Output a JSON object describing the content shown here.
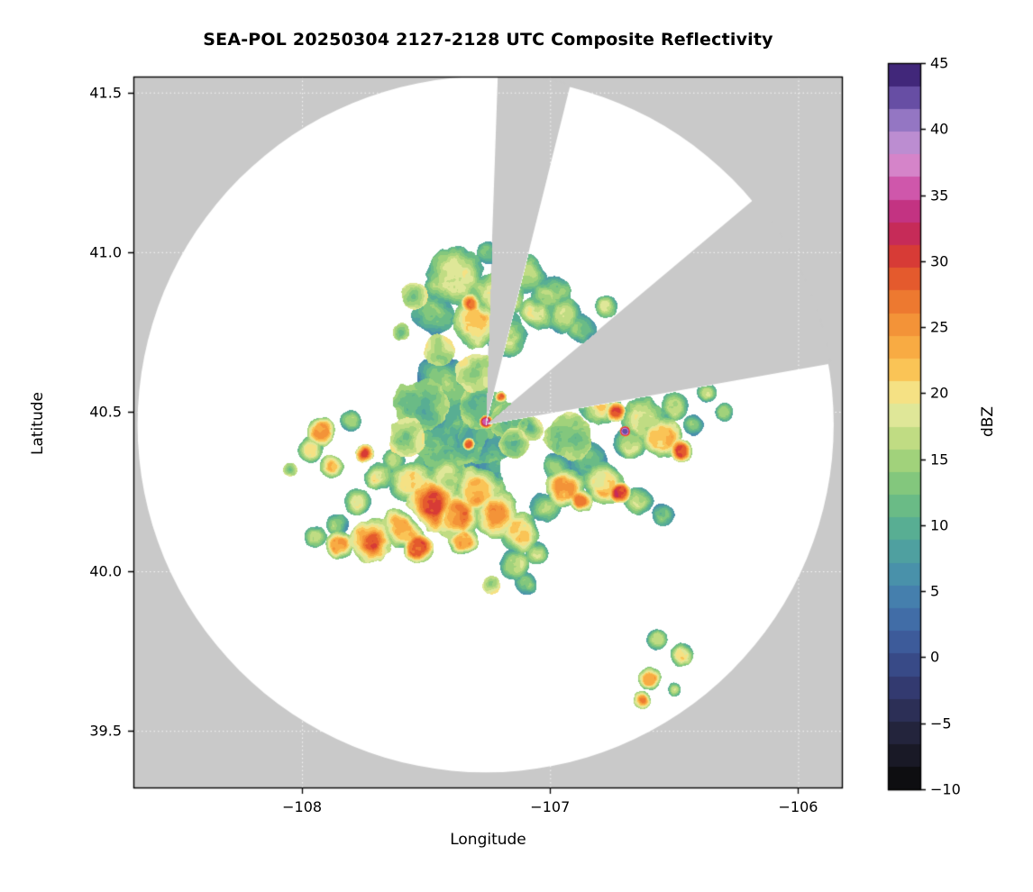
{
  "chart_data": {
    "type": "heatmap",
    "title": "SEA-POL 20250304 2127-2128 UTC Composite Reflectivity",
    "xlabel": "Longitude",
    "ylabel": "Latitude",
    "xlim": [
      -108.68,
      -105.82
    ],
    "ylim": [
      39.32,
      41.55
    ],
    "grid": "dotted",
    "legend_position": "right-colorbar",
    "background_outside_range": "#c9c9c9",
    "background_inside_range": "#ffffff",
    "xticks": [
      {
        "value": -108,
        "label": "−108"
      },
      {
        "value": -107,
        "label": "−107"
      },
      {
        "value": -106,
        "label": "−106"
      }
    ],
    "yticks": [
      {
        "value": 41.5,
        "label": "41.5"
      },
      {
        "value": 41.0,
        "label": "41.0"
      },
      {
        "value": 40.5,
        "label": "40.5"
      },
      {
        "value": 40.0,
        "label": "40.0"
      },
      {
        "value": 39.5,
        "label": "39.5"
      }
    ],
    "radar": {
      "center_lon": -107.26,
      "center_lat": 40.46,
      "range_deg_lat": 1.09,
      "blocked_sectors_deg_az": [
        [
          2,
          14
        ],
        [
          50,
          80
        ]
      ]
    },
    "colorbar": {
      "label": "dBZ",
      "min": -10,
      "max": 45,
      "ticks": [
        {
          "value": 45,
          "label": "45"
        },
        {
          "value": 40,
          "label": "40"
        },
        {
          "value": 35,
          "label": "35"
        },
        {
          "value": 30,
          "label": "30"
        },
        {
          "value": 25,
          "label": "25"
        },
        {
          "value": 20,
          "label": "20"
        },
        {
          "value": 15,
          "label": "15"
        },
        {
          "value": 10,
          "label": "10"
        },
        {
          "value": 5,
          "label": "5"
        },
        {
          "value": 0,
          "label": "0"
        },
        {
          "value": -5,
          "label": "−5"
        },
        {
          "value": -10,
          "label": "−10"
        }
      ],
      "colormap": [
        [
          -10,
          "#080808"
        ],
        [
          -8,
          "#16161e"
        ],
        [
          -6,
          "#222238"
        ],
        [
          -4,
          "#2c2f56"
        ],
        [
          -2,
          "#343c74"
        ],
        [
          0,
          "#3a4f8e"
        ],
        [
          2,
          "#3f64a2"
        ],
        [
          4,
          "#4379ae"
        ],
        [
          6,
          "#488eac"
        ],
        [
          8,
          "#4fa0a0"
        ],
        [
          10,
          "#59b091"
        ],
        [
          12,
          "#70bf82"
        ],
        [
          14,
          "#90cc7a"
        ],
        [
          16,
          "#b4d87c"
        ],
        [
          18,
          "#d8e492"
        ],
        [
          19,
          "#eceba3"
        ],
        [
          20,
          "#f5e287"
        ],
        [
          21,
          "#f8d465"
        ],
        [
          22,
          "#fac052"
        ],
        [
          24,
          "#f7a43e"
        ],
        [
          26,
          "#f18834"
        ],
        [
          28,
          "#e8682c"
        ],
        [
          30,
          "#db3f2e"
        ],
        [
          32,
          "#c62a55"
        ],
        [
          34,
          "#c33486"
        ],
        [
          35,
          "#cb49a0"
        ],
        [
          36,
          "#d263b4"
        ],
        [
          37,
          "#d77ec5"
        ],
        [
          38,
          "#cf93d3"
        ],
        [
          40,
          "#a887cf"
        ],
        [
          42,
          "#7058ad"
        ],
        [
          44,
          "#452a80"
        ],
        [
          45,
          "#2a1455"
        ]
      ]
    },
    "echoes_note": "each echo cell: [lon, lat, radius_deg, peak_dBZ]",
    "echoes": [
      [
        -107.38,
        40.92,
        0.1,
        17
      ],
      [
        -107.22,
        40.87,
        0.09,
        19
      ],
      [
        -107.1,
        40.94,
        0.07,
        15
      ],
      [
        -107.47,
        40.8,
        0.08,
        14
      ],
      [
        -107.3,
        40.78,
        0.09,
        21
      ],
      [
        -107.18,
        40.74,
        0.08,
        16
      ],
      [
        -107.32,
        40.84,
        0.035,
        27
      ],
      [
        -107.05,
        40.81,
        0.06,
        18
      ],
      [
        -106.98,
        40.88,
        0.05,
        14
      ],
      [
        -107.55,
        40.86,
        0.045,
        12
      ],
      [
        -107.25,
        41.0,
        0.04,
        13
      ],
      [
        -107.45,
        40.7,
        0.06,
        12
      ],
      [
        -107.6,
        40.75,
        0.035,
        10
      ],
      [
        -107.02,
        40.86,
        0.05,
        16
      ],
      [
        -106.95,
        40.8,
        0.06,
        16
      ],
      [
        -106.88,
        40.76,
        0.05,
        14
      ],
      [
        -106.78,
        40.83,
        0.04,
        17
      ],
      [
        -106.8,
        40.52,
        0.07,
        20
      ],
      [
        -106.74,
        40.5,
        0.035,
        30
      ],
      [
        -106.62,
        40.47,
        0.08,
        18
      ],
      [
        -106.5,
        40.52,
        0.05,
        16
      ],
      [
        -106.55,
        40.42,
        0.07,
        22
      ],
      [
        -106.47,
        40.38,
        0.04,
        29
      ],
      [
        -106.68,
        40.4,
        0.06,
        17
      ],
      [
        -106.42,
        40.46,
        0.04,
        14
      ],
      [
        -106.37,
        40.56,
        0.035,
        15
      ],
      [
        -106.7,
        40.44,
        0.018,
        44
      ],
      [
        -106.3,
        40.5,
        0.03,
        13
      ],
      [
        -106.92,
        40.42,
        0.08,
        11
      ],
      [
        -106.85,
        40.35,
        0.07,
        13
      ],
      [
        -106.78,
        40.28,
        0.07,
        21
      ],
      [
        -106.72,
        40.25,
        0.035,
        30
      ],
      [
        -106.98,
        40.33,
        0.05,
        15
      ],
      [
        -106.64,
        40.22,
        0.05,
        18
      ],
      [
        -106.55,
        40.18,
        0.04,
        14
      ],
      [
        -107.42,
        40.47,
        0.16,
        7
      ],
      [
        -107.33,
        40.36,
        0.13,
        4
      ],
      [
        -107.25,
        40.42,
        0.1,
        6
      ],
      [
        -107.52,
        40.52,
        0.1,
        9
      ],
      [
        -107.45,
        40.32,
        0.09,
        6
      ],
      [
        -107.28,
        40.52,
        0.08,
        9
      ],
      [
        -107.17,
        40.47,
        0.06,
        10
      ],
      [
        -107.26,
        40.47,
        0.022,
        35
      ],
      [
        -107.33,
        40.4,
        0.02,
        31
      ],
      [
        -107.2,
        40.55,
        0.02,
        28
      ],
      [
        -107.45,
        40.6,
        0.09,
        13
      ],
      [
        -107.3,
        40.62,
        0.07,
        12
      ],
      [
        -107.58,
        40.42,
        0.07,
        12
      ],
      [
        -107.15,
        40.4,
        0.05,
        12
      ],
      [
        -107.08,
        40.45,
        0.04,
        11
      ],
      [
        -107.92,
        40.44,
        0.05,
        24
      ],
      [
        -107.97,
        40.38,
        0.045,
        19
      ],
      [
        -107.88,
        40.33,
        0.05,
        22
      ],
      [
        -107.75,
        40.37,
        0.04,
        31
      ],
      [
        -107.7,
        40.3,
        0.05,
        18
      ],
      [
        -107.8,
        40.47,
        0.04,
        15
      ],
      [
        -108.05,
        40.32,
        0.025,
        12
      ],
      [
        -107.63,
        40.35,
        0.04,
        14
      ],
      [
        -107.78,
        40.22,
        0.05,
        16
      ],
      [
        -107.86,
        40.15,
        0.04,
        14
      ],
      [
        -107.72,
        40.1,
        0.08,
        27
      ],
      [
        -107.6,
        40.13,
        0.07,
        24
      ],
      [
        -107.54,
        40.07,
        0.05,
        29
      ],
      [
        -107.48,
        40.21,
        0.09,
        29
      ],
      [
        -107.38,
        40.18,
        0.08,
        26
      ],
      [
        -107.3,
        40.25,
        0.09,
        22
      ],
      [
        -107.22,
        40.18,
        0.08,
        24
      ],
      [
        -107.12,
        40.13,
        0.07,
        21
      ],
      [
        -107.42,
        40.28,
        0.08,
        18
      ],
      [
        -107.56,
        40.28,
        0.07,
        20
      ],
      [
        -107.02,
        40.2,
        0.06,
        16
      ],
      [
        -107.35,
        40.1,
        0.05,
        22
      ],
      [
        -107.85,
        40.08,
        0.05,
        22
      ],
      [
        -107.95,
        40.11,
        0.04,
        16
      ],
      [
        -106.95,
        40.26,
        0.07,
        24
      ],
      [
        -106.88,
        40.22,
        0.04,
        28
      ],
      [
        -107.15,
        40.02,
        0.05,
        17
      ],
      [
        -107.1,
        39.96,
        0.04,
        14
      ],
      [
        -107.24,
        39.96,
        0.03,
        12
      ],
      [
        -107.05,
        40.06,
        0.04,
        15
      ],
      [
        -106.57,
        39.79,
        0.035,
        17
      ],
      [
        -106.47,
        39.74,
        0.04,
        20
      ],
      [
        -106.6,
        39.66,
        0.04,
        24
      ],
      [
        -106.63,
        39.6,
        0.035,
        27
      ],
      [
        -106.5,
        39.63,
        0.025,
        15
      ]
    ]
  }
}
